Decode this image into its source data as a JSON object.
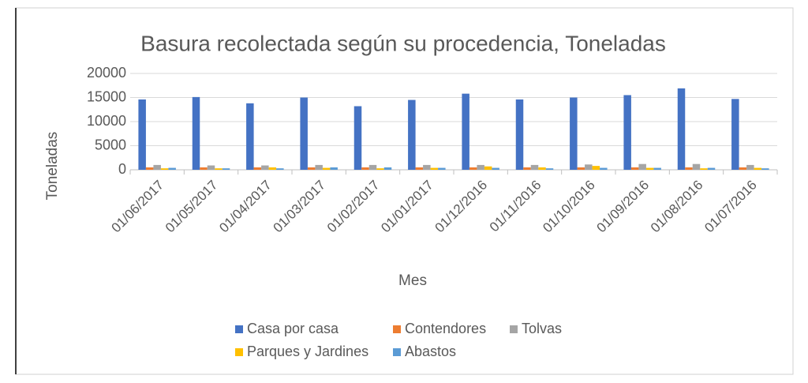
{
  "chart_data": {
    "type": "bar",
    "title": "Basura recolectada según su procedencia, Toneladas",
    "x_label": "Mes",
    "y_label": "Toneladas",
    "categories": [
      "01/06/2017",
      "01/05/2017",
      "01/04/2017",
      "01/03/2017",
      "01/02/2017",
      "01/01/2017",
      "01/12/2016",
      "01/11/2016",
      "01/10/2016",
      "01/09/2016",
      "01/08/2016",
      "01/07/2016"
    ],
    "series": [
      {
        "name": "Casa por casa",
        "color": "#4472c4",
        "values": [
          14600,
          15100,
          13800,
          15000,
          13200,
          14500,
          15800,
          14600,
          15000,
          15500,
          16900,
          14700
        ]
      },
      {
        "name": "Contendores",
        "color": "#ed7d31",
        "values": [
          500,
          500,
          500,
          500,
          500,
          500,
          500,
          500,
          500,
          500,
          500,
          500
        ]
      },
      {
        "name": "Tolvas",
        "color": "#a5a5a5",
        "values": [
          1000,
          900,
          900,
          1000,
          1000,
          1000,
          1000,
          1000,
          1100,
          1200,
          1200,
          1000
        ]
      },
      {
        "name": "Parques y Jardines",
        "color": "#ffc000",
        "values": [
          300,
          300,
          500,
          400,
          300,
          400,
          700,
          500,
          800,
          400,
          300,
          400
        ]
      },
      {
        "name": "Abastos",
        "color": "#5b9bd5",
        "values": [
          400,
          300,
          300,
          500,
          500,
          400,
          400,
          300,
          400,
          400,
          400,
          300
        ]
      }
    ],
    "ylim": [
      0,
      20000
    ],
    "yticks": [
      0,
      5000,
      10000,
      15000,
      20000
    ],
    "grid": true,
    "legend": "bottom"
  }
}
